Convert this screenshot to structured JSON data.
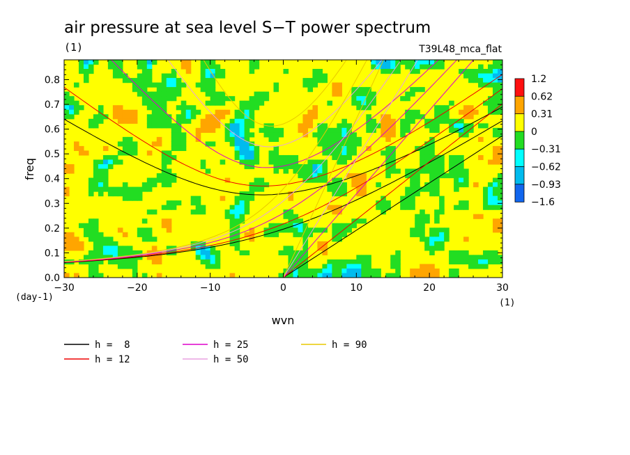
{
  "chart_data": {
    "type": "heatmap",
    "title": "air pressure at sea level S−T power spectrum",
    "units": "(1)",
    "dataset": "T39L48_mca_flat",
    "xlabel": "wvn",
    "ylabel": "freq",
    "x_units": "(1)",
    "y_units": "(day-1)",
    "xlim": [
      -30,
      30
    ],
    "ylim": [
      0,
      0.88
    ],
    "x_ticks": [
      -30,
      -20,
      -10,
      0,
      10,
      20,
      30
    ],
    "x_tick_labels": [
      "−30",
      "−20",
      "−10",
      "0",
      "10",
      "20",
      "30"
    ],
    "y_ticks": [
      0,
      0.1,
      0.2,
      0.3,
      0.4,
      0.5,
      0.6,
      0.7,
      0.8
    ],
    "y_tick_labels": [
      "0.0",
      "0.1",
      "0.2",
      "0.3",
      "0.4",
      "0.5",
      "0.6",
      "0.7",
      "0.8"
    ],
    "colorbar": {
      "labels": [
        "1.2",
        "0.62",
        "0.31",
        "0",
        "−0.31",
        "−0.62",
        "−0.93",
        "−1.6"
      ],
      "colors": [
        "#ff1010",
        "#ffa500",
        "#ffff00",
        "#22dd22",
        "#00ffff",
        "#00bbee",
        "#1166ee"
      ]
    },
    "palette": {
      "dominant": "#ffff00",
      "secondary": "#22dd22",
      "sparse": [
        "#ffa500",
        "#00ffff",
        "#00bbee",
        "#1166ee"
      ]
    },
    "dispersion_curves": [
      {
        "name": "h =  8",
        "h": 8,
        "color": "#000000"
      },
      {
        "name": "h = 12",
        "h": 12,
        "color": "#ee0000"
      },
      {
        "name": "h = 25",
        "h": 25,
        "color": "#dd00cc"
      },
      {
        "name": "h = 50",
        "h": 50,
        "color": "#e8a0e0"
      },
      {
        "name": "h = 90",
        "h": 90,
        "color": "#e8c800"
      }
    ]
  }
}
